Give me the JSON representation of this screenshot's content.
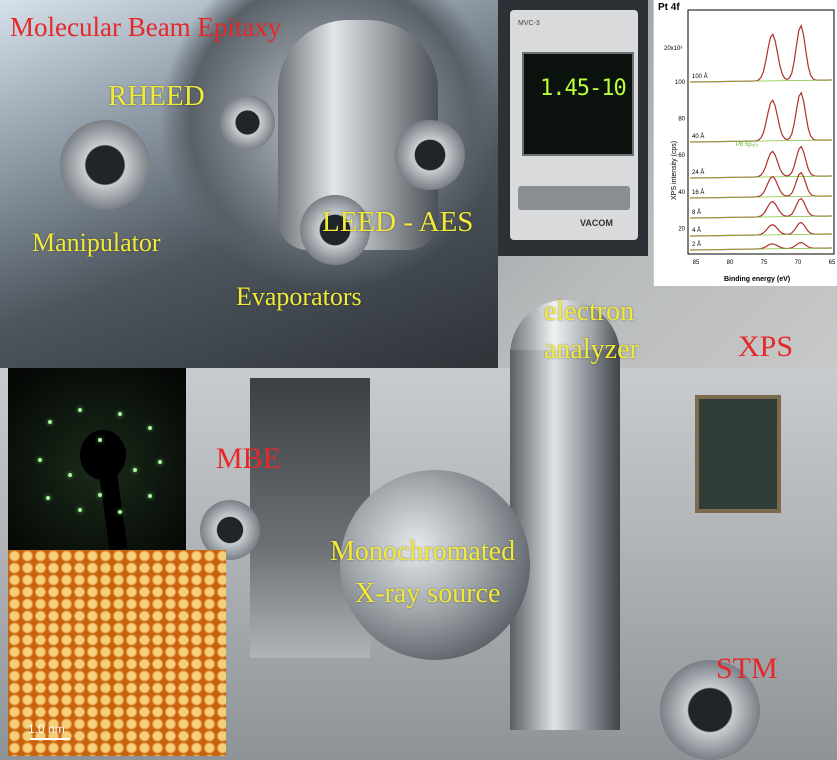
{
  "labels": {
    "mbe_title": "Molecular Beam Epitaxy",
    "rheed": "RHEED",
    "manipulator": "Manipulator",
    "leed_aes": "LEED - AES",
    "evaporators": "Evaporators",
    "electron_analyzer_1": "electron",
    "electron_analyzer_2": "analyzer",
    "xps": "XPS",
    "mbe": "MBE",
    "mono_1": "Monochromated",
    "mono_2": "X-ray source",
    "stm": "STM"
  },
  "gauge": {
    "reading": "1.45-10",
    "model": "MVC-3",
    "brand": "VACOM"
  },
  "stm_inset": {
    "scale": "1.0 nm"
  },
  "xps_inset": {
    "title": "Pt 4f",
    "ylabel": "XPS intensity (cps)",
    "xlabel": "Binding energy (eV)",
    "y_exponent": "20x10³",
    "y_ticks": [
      "100",
      "80",
      "60",
      "40",
      "20"
    ],
    "x_ticks": [
      "85",
      "80",
      "75",
      "70",
      "65"
    ],
    "curves": [
      "100 Å",
      "40 Å",
      "24 Å",
      "16 Å",
      "8 Å",
      "4 Å",
      "2 Å"
    ],
    "annotation": "Pb 5p₃/₂",
    "colors": {
      "data": "#b0302a",
      "fit": "#222222",
      "component_a": "#3a4fb0",
      "component_b": "#d36a6a",
      "background": "#7fc23a"
    }
  }
}
